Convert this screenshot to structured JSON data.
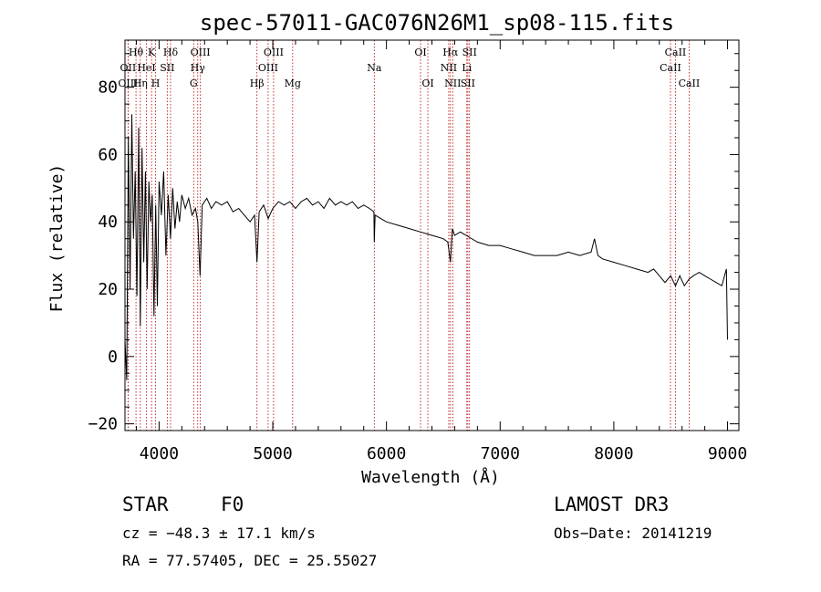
{
  "chart_data": {
    "type": "line",
    "title": "spec-57011-GAC076N26M1_sp08-115.fits",
    "xlabel": "Wavelength (Å)",
    "ylabel": "Flux (relative)",
    "xlim": [
      3700,
      9100
    ],
    "ylim": [
      -22,
      94
    ],
    "xticks": [
      4000,
      5000,
      6000,
      7000,
      8000,
      9000
    ],
    "yticks": [
      -20,
      0,
      20,
      40,
      60,
      80
    ],
    "series": [
      {
        "name": "spectrum",
        "x": [
          3700,
          3715,
          3730,
          3745,
          3760,
          3775,
          3790,
          3805,
          3820,
          3835,
          3850,
          3865,
          3880,
          3895,
          3910,
          3925,
          3940,
          3955,
          3970,
          3985,
          4000,
          4020,
          4040,
          4060,
          4080,
          4100,
          4120,
          4140,
          4160,
          4180,
          4200,
          4230,
          4260,
          4290,
          4320,
          4340,
          4360,
          4380,
          4420,
          4460,
          4500,
          4550,
          4600,
          4650,
          4700,
          4750,
          4800,
          4840,
          4861,
          4880,
          4920,
          4960,
          5000,
          5050,
          5100,
          5150,
          5200,
          5250,
          5300,
          5350,
          5400,
          5450,
          5500,
          5550,
          5600,
          5650,
          5700,
          5750,
          5800,
          5850,
          5890,
          5893,
          5900,
          5950,
          6000,
          6100,
          6200,
          6300,
          6400,
          6500,
          6540,
          6563,
          6580,
          6600,
          6650,
          6700,
          6800,
          6900,
          7000,
          7100,
          7200,
          7300,
          7400,
          7500,
          7600,
          7700,
          7800,
          7830,
          7860,
          7900,
          8000,
          8100,
          8200,
          8300,
          8350,
          8400,
          8450,
          8500,
          8542,
          8580,
          8620,
          8662,
          8700,
          8750,
          8800,
          8850,
          8900,
          8950,
          8990,
          9000
        ],
        "values": [
          5,
          -7,
          65,
          20,
          72,
          35,
          55,
          18,
          68,
          9,
          62,
          28,
          55,
          20,
          52,
          40,
          48,
          12,
          45,
          15,
          52,
          42,
          55,
          30,
          48,
          35,
          50,
          38,
          46,
          40,
          48,
          44,
          47,
          42,
          44,
          40,
          24,
          45,
          47,
          44,
          46,
          45,
          46,
          43,
          44,
          42,
          40,
          42,
          28,
          43,
          45,
          41,
          44,
          46,
          45,
          46,
          44,
          46,
          47,
          45,
          46,
          44,
          47,
          45,
          46,
          45,
          46,
          44,
          45,
          44,
          43,
          34,
          42,
          41,
          40,
          39,
          38,
          37,
          36,
          35,
          34,
          28,
          38,
          36,
          37,
          36,
          34,
          33,
          33,
          32,
          31,
          30,
          30,
          30,
          31,
          30,
          31,
          35,
          30,
          29,
          28,
          27,
          26,
          25,
          26,
          24,
          22,
          24,
          21,
          24,
          21,
          23,
          24,
          25,
          24,
          23,
          22,
          21,
          26,
          5
        ]
      }
    ],
    "lines": [
      {
        "label": "Hθ",
        "x": 3797,
        "row": 1
      },
      {
        "label": "OII",
        "x": 3727,
        "row": 2
      },
      {
        "label": "OIII",
        "x": 3727,
        "row": 3
      },
      {
        "label": "K",
        "x": 3934,
        "row": 1
      },
      {
        "label": "HeI",
        "x": 3889,
        "row": 2
      },
      {
        "label": "Hη",
        "x": 3835,
        "row": 3
      },
      {
        "label": "Hδ",
        "x": 4101,
        "row": 1
      },
      {
        "label": "SII",
        "x": 4072,
        "row": 2
      },
      {
        "label": "H",
        "x": 3969,
        "row": 3
      },
      {
        "label": "OIII",
        "x": 4363,
        "row": 1
      },
      {
        "label": "Hγ",
        "x": 4340,
        "row": 2
      },
      {
        "label": "G",
        "x": 4304,
        "row": 3
      },
      {
        "label": "OIII",
        "x": 5007,
        "row": 1
      },
      {
        "label": "OIII",
        "x": 4959,
        "row": 2
      },
      {
        "label": "Hβ",
        "x": 4861,
        "row": 3
      },
      {
        "label": "Mg",
        "x": 5175,
        "row": 3
      },
      {
        "label": "Na",
        "x": 5893,
        "row": 2
      },
      {
        "label": "OI",
        "x": 6300,
        "row": 1
      },
      {
        "label": "OI",
        "x": 6364,
        "row": 3
      },
      {
        "label": "Hα",
        "x": 6563,
        "row": 1
      },
      {
        "label": "SII",
        "x": 6731,
        "row": 1
      },
      {
        "label": "NII",
        "x": 6548,
        "row": 2
      },
      {
        "label": "Li",
        "x": 6707,
        "row": 2
      },
      {
        "label": "NII",
        "x": 6583,
        "row": 3
      },
      {
        "label": "SII",
        "x": 6716,
        "row": 3
      },
      {
        "label": "CaII",
        "x": 8542,
        "row": 1
      },
      {
        "label": "CaII",
        "x": 8498,
        "row": 2
      },
      {
        "label": "CaII",
        "x": 8662,
        "row": 3
      }
    ]
  },
  "info": {
    "class_label": "STAR",
    "subclass": "F0",
    "survey": "LAMOST DR3",
    "cz": "cz = −48.3 ± 17.1 km/s",
    "obs_date": "Obs−Date: 20141219",
    "radec": "RA =  77.57405, DEC =  25.55027"
  }
}
